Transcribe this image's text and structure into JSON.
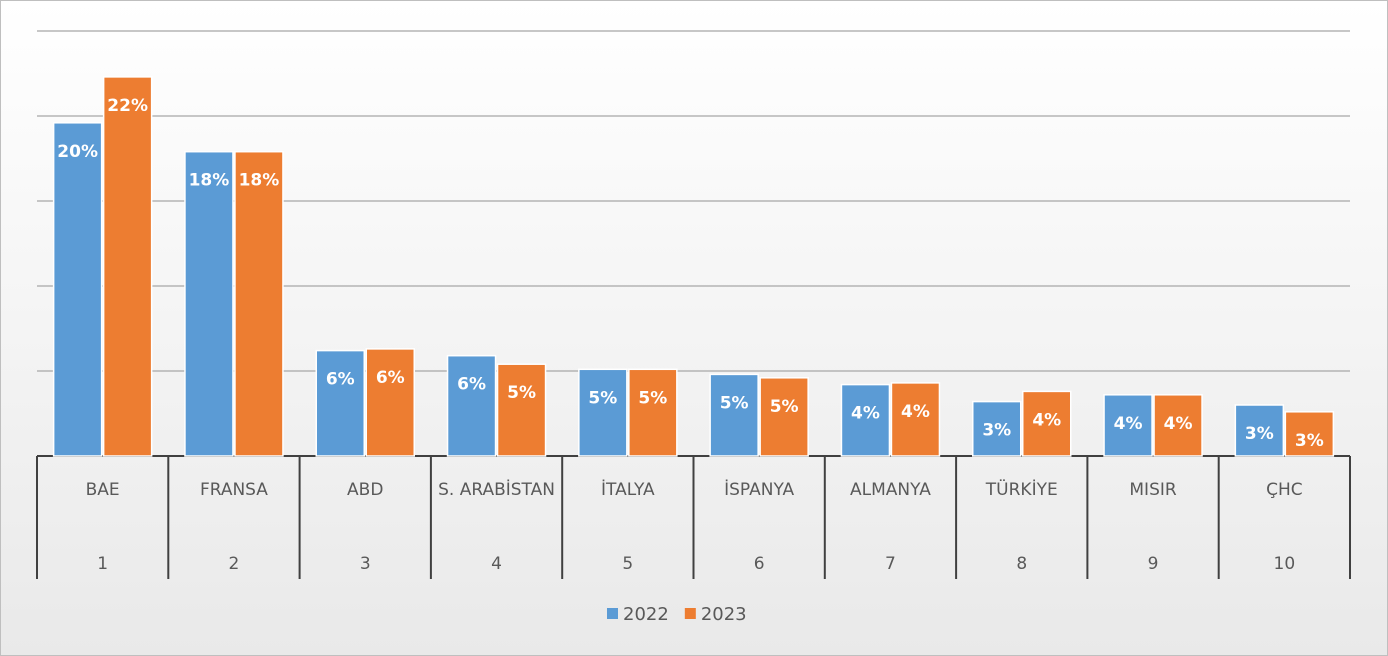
{
  "chart_data": {
    "type": "bar",
    "categories": [
      "BAE",
      "FRANSA",
      "ABD",
      "S. ARABİSTAN",
      "İTALYA",
      "İSPANYA",
      "ALMANYA",
      "TÜRKİYE",
      "MISIR",
      "ÇHC"
    ],
    "ranks": [
      "1",
      "2",
      "3",
      "4",
      "5",
      "6",
      "7",
      "8",
      "9",
      "10"
    ],
    "series": [
      {
        "name": "2022",
        "color": "#5b9bd5",
        "values": [
          19.6,
          17.9,
          6.2,
          5.9,
          5.1,
          4.8,
          4.2,
          3.2,
          3.6,
          3.0
        ],
        "value_labels": [
          "20%",
          "18%",
          "6%",
          "6%",
          "5%",
          "5%",
          "4%",
          "3%",
          "4%",
          "3%"
        ]
      },
      {
        "name": "2023",
        "color": "#ed7d31",
        "values": [
          22.3,
          17.9,
          6.3,
          5.4,
          5.1,
          4.6,
          4.3,
          3.8,
          3.6,
          2.6
        ],
        "value_labels": [
          "22%",
          "18%",
          "6%",
          "5%",
          "5%",
          "5%",
          "4%",
          "4%",
          "4%",
          "3%"
        ]
      }
    ],
    "ylim": [
      0,
      25
    ],
    "yticks": [
      0,
      5,
      10,
      15,
      20,
      25
    ],
    "grid": true,
    "legend": "bottom"
  }
}
